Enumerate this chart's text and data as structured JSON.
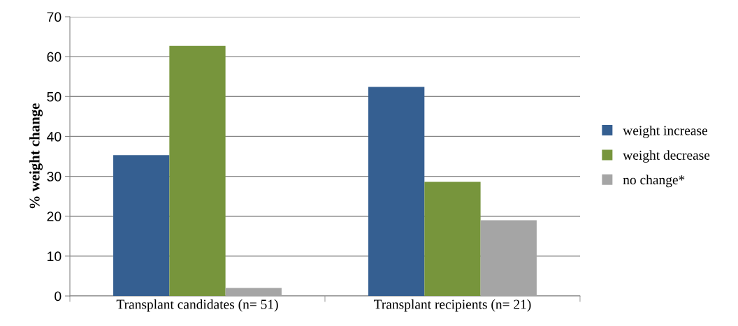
{
  "chart_data": {
    "type": "bar",
    "ylabel": "% weight change",
    "categories": [
      "Transplant candidates (n= 51)",
      "Transplant recipients (n= 21)"
    ],
    "series": [
      {
        "name": "weight increase",
        "color": "#355f91",
        "values": [
          35.3,
          52.4
        ]
      },
      {
        "name": "weight decrease",
        "color": "#77953c",
        "values": [
          62.7,
          28.6
        ]
      },
      {
        "name": "no change*",
        "color": "#a5a5a5",
        "values": [
          2.0,
          19.0
        ]
      }
    ],
    "ylim": [
      0,
      70
    ],
    "yticks": [
      0,
      10,
      20,
      30,
      40,
      50,
      60,
      70
    ],
    "grid": "y",
    "legend": "right"
  }
}
